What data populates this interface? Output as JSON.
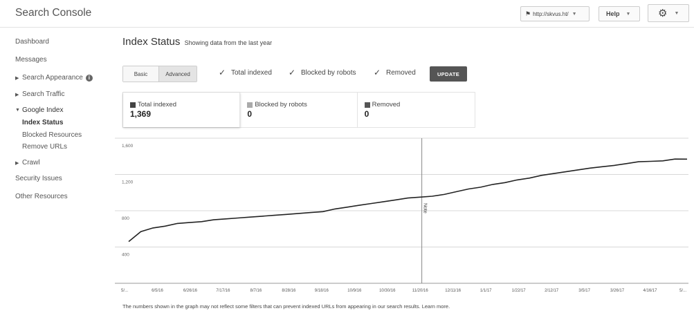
{
  "header": {
    "app_title": "Search Console",
    "site_selector": "http://skvus.ht/",
    "help_label": "Help",
    "settings_icon": "gear-icon"
  },
  "sidebar": {
    "items": [
      {
        "label": "Dashboard"
      },
      {
        "label": "Messages"
      },
      {
        "label": "Search Appearance"
      },
      {
        "label": "Search Traffic"
      },
      {
        "label": "Google Index"
      },
      {
        "label": "Crawl"
      },
      {
        "label": "Security Issues"
      },
      {
        "label": "Other Resources"
      }
    ],
    "google_index_sub": [
      {
        "label": "Index Status"
      },
      {
        "label": "Blocked Resources"
      },
      {
        "label": "Remove URLs"
      }
    ]
  },
  "main": {
    "title": "Index Status",
    "subtitle": "Showing data from the last year",
    "view_basic": "Basic",
    "view_advanced": "Advanced",
    "checkboxes": [
      {
        "label": "Total indexed",
        "checked": true
      },
      {
        "label": "Blocked by robots",
        "checked": true
      },
      {
        "label": "Removed",
        "checked": true
      }
    ],
    "update_label": "UPDATE",
    "metrics": [
      {
        "label": "Total indexed",
        "value": "1,369",
        "color": "#444444"
      },
      {
        "label": "Blocked by robots",
        "value": "0",
        "color": "#aaaaaa"
      },
      {
        "label": "Removed",
        "value": "0",
        "color": "#555555"
      }
    ],
    "footnote": "The numbers shown in the graph may not reflect some filters that can prevent indexed URLs from appearing in our search results. Learn more."
  },
  "chart_data": {
    "type": "line",
    "title": "",
    "y_ticks": [
      "1,600",
      "1,200",
      "800",
      "400"
    ],
    "ylim": [
      0,
      1600
    ],
    "x_tick_labels": [
      "5/...",
      "6/5/16",
      "6/26/16",
      "7/17/16",
      "8/7/16",
      "8/28/16",
      "9/18/16",
      "10/9/16",
      "10/30/16",
      "11/20/16",
      "12/11/16",
      "1/1/17",
      "1/22/17",
      "2/12/17",
      "3/5/17",
      "3/26/17",
      "4/16/17",
      "5/..."
    ],
    "annotation": {
      "label": "Note",
      "x_index": 9.05
    },
    "series": [
      {
        "values": [
          [
            0,
            460
          ],
          [
            0.5,
            570
          ],
          [
            1,
            610
          ],
          [
            1.5,
            630
          ],
          [
            2,
            660
          ],
          [
            2.5,
            670
          ],
          [
            3,
            680
          ],
          [
            3.5,
            700
          ],
          [
            4,
            710
          ],
          [
            4.5,
            720
          ],
          [
            5,
            730
          ],
          [
            5.5,
            740
          ],
          [
            6,
            750
          ],
          [
            6.5,
            760
          ],
          [
            7,
            770
          ],
          [
            7.5,
            780
          ],
          [
            8,
            790
          ],
          [
            8.5,
            820
          ],
          [
            9,
            840
          ],
          [
            9.5,
            860
          ],
          [
            10,
            880
          ],
          [
            10.5,
            900
          ],
          [
            11,
            920
          ],
          [
            11.5,
            940
          ],
          [
            12,
            950
          ],
          [
            12.5,
            960
          ],
          [
            13,
            980
          ],
          [
            13.5,
            1010
          ],
          [
            14,
            1040
          ],
          [
            14.5,
            1060
          ],
          [
            15,
            1090
          ],
          [
            15.5,
            1110
          ],
          [
            16,
            1140
          ],
          [
            16.5,
            1160
          ],
          [
            17,
            1190
          ],
          [
            17.5,
            1210
          ],
          [
            18,
            1230
          ],
          [
            18.5,
            1250
          ],
          [
            19,
            1270
          ],
          [
            19.5,
            1285
          ],
          [
            20,
            1300
          ],
          [
            20.5,
            1320
          ],
          [
            21,
            1340
          ],
          [
            21.5,
            1345
          ],
          [
            22,
            1350
          ],
          [
            22.5,
            1370
          ],
          [
            23,
            1369
          ]
        ]
      }
    ],
    "x_points_span": 23,
    "line_color": "#222222",
    "grid": true
  }
}
